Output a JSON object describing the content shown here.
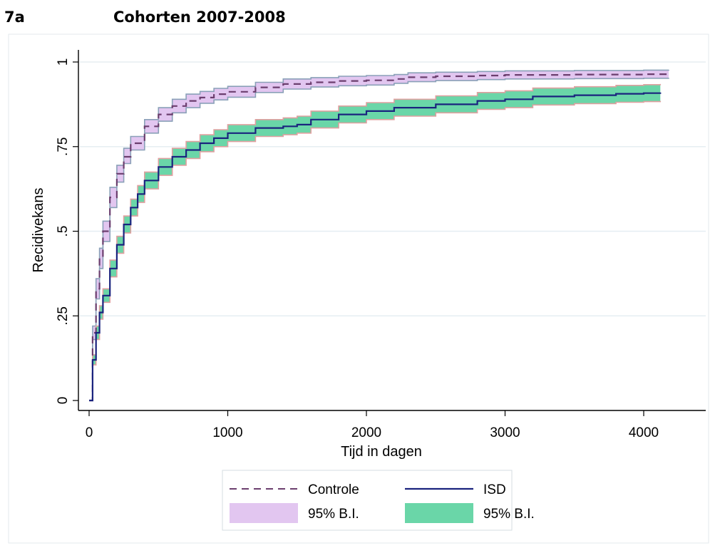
{
  "figure": {
    "label": "7a",
    "title": "Cohorten 2007-2008"
  },
  "colors": {
    "controle_line": "#6b3e6e",
    "controle_band": "#e2c6f0",
    "controle_band_edge": "#8aa0b8",
    "isd_line": "#1a237e",
    "isd_band": "#6ad6a8",
    "isd_band_edge": "#e0a0a0",
    "grid": "#e6eef2",
    "axis": "#000000"
  },
  "chart_data": {
    "type": "line",
    "xlabel": "Tijd in dagen",
    "ylabel": "Recidivekans",
    "xlim": [
      0,
      4450
    ],
    "ylim": [
      0,
      1
    ],
    "xticks": [
      0,
      1000,
      2000,
      3000,
      4000
    ],
    "xtick_labels": [
      "0",
      "1000",
      "2000",
      "3000",
      "4000"
    ],
    "yticks": [
      0,
      0.25,
      0.5,
      0.75,
      1
    ],
    "ytick_labels": [
      "0",
      ".25",
      ".5",
      ".75",
      "1"
    ],
    "grid": "horizontal",
    "legend_position": "bottom",
    "series": [
      {
        "name": "Controle",
        "style": "dashed",
        "x": [
          0,
          25,
          50,
          75,
          100,
          150,
          200,
          250,
          300,
          400,
          500,
          600,
          700,
          800,
          900,
          1000,
          1200,
          1400,
          1600,
          1800,
          2000,
          2200,
          2300,
          2500,
          2800,
          3000,
          3500,
          4000,
          4180
        ],
        "y": [
          0,
          0.2,
          0.33,
          0.42,
          0.5,
          0.6,
          0.67,
          0.72,
          0.76,
          0.81,
          0.845,
          0.87,
          0.885,
          0.895,
          0.905,
          0.912,
          0.925,
          0.935,
          0.94,
          0.944,
          0.946,
          0.95,
          0.955,
          0.958,
          0.96,
          0.962,
          0.963,
          0.964,
          0.965
        ],
        "ci_lower": [
          0,
          0.18,
          0.3,
          0.39,
          0.47,
          0.57,
          0.645,
          0.7,
          0.74,
          0.79,
          0.825,
          0.85,
          0.865,
          0.878,
          0.888,
          0.896,
          0.91,
          0.92,
          0.926,
          0.93,
          0.932,
          0.937,
          0.942,
          0.945,
          0.948,
          0.95,
          0.951,
          0.952,
          0.953
        ],
        "ci_upper": [
          0,
          0.22,
          0.36,
          0.45,
          0.53,
          0.63,
          0.695,
          0.745,
          0.78,
          0.83,
          0.865,
          0.89,
          0.905,
          0.913,
          0.922,
          0.928,
          0.94,
          0.95,
          0.954,
          0.958,
          0.96,
          0.963,
          0.968,
          0.97,
          0.972,
          0.974,
          0.975,
          0.976,
          0.977
        ]
      },
      {
        "name": "ISD",
        "style": "solid",
        "x": [
          0,
          25,
          50,
          75,
          100,
          150,
          200,
          250,
          300,
          350,
          400,
          500,
          600,
          700,
          800,
          900,
          1000,
          1200,
          1400,
          1500,
          1600,
          1800,
          2000,
          2200,
          2500,
          2800,
          3000,
          3200,
          3500,
          3800,
          4000,
          4120
        ],
        "y": [
          0,
          0.12,
          0.2,
          0.26,
          0.31,
          0.39,
          0.46,
          0.52,
          0.57,
          0.61,
          0.65,
          0.69,
          0.72,
          0.74,
          0.76,
          0.775,
          0.79,
          0.805,
          0.81,
          0.815,
          0.83,
          0.845,
          0.855,
          0.865,
          0.875,
          0.885,
          0.89,
          0.898,
          0.902,
          0.906,
          0.908,
          0.91
        ],
        "ci_lower": [
          0,
          0.105,
          0.18,
          0.24,
          0.29,
          0.365,
          0.435,
          0.495,
          0.545,
          0.585,
          0.625,
          0.665,
          0.695,
          0.715,
          0.735,
          0.75,
          0.765,
          0.78,
          0.785,
          0.79,
          0.805,
          0.82,
          0.83,
          0.84,
          0.85,
          0.86,
          0.865,
          0.873,
          0.877,
          0.881,
          0.883,
          0.885
        ],
        "ci_upper": [
          0,
          0.135,
          0.22,
          0.28,
          0.33,
          0.415,
          0.485,
          0.545,
          0.595,
          0.635,
          0.675,
          0.715,
          0.745,
          0.765,
          0.785,
          0.8,
          0.815,
          0.83,
          0.835,
          0.84,
          0.855,
          0.87,
          0.88,
          0.89,
          0.9,
          0.91,
          0.915,
          0.923,
          0.927,
          0.931,
          0.933,
          0.935
        ]
      }
    ],
    "legend": [
      {
        "key": "controle_line",
        "label": "Controle"
      },
      {
        "key": "isd_line",
        "label": "ISD"
      },
      {
        "key": "controle_band",
        "label": "95% B.I."
      },
      {
        "key": "isd_band",
        "label": "95% B.I."
      }
    ]
  }
}
